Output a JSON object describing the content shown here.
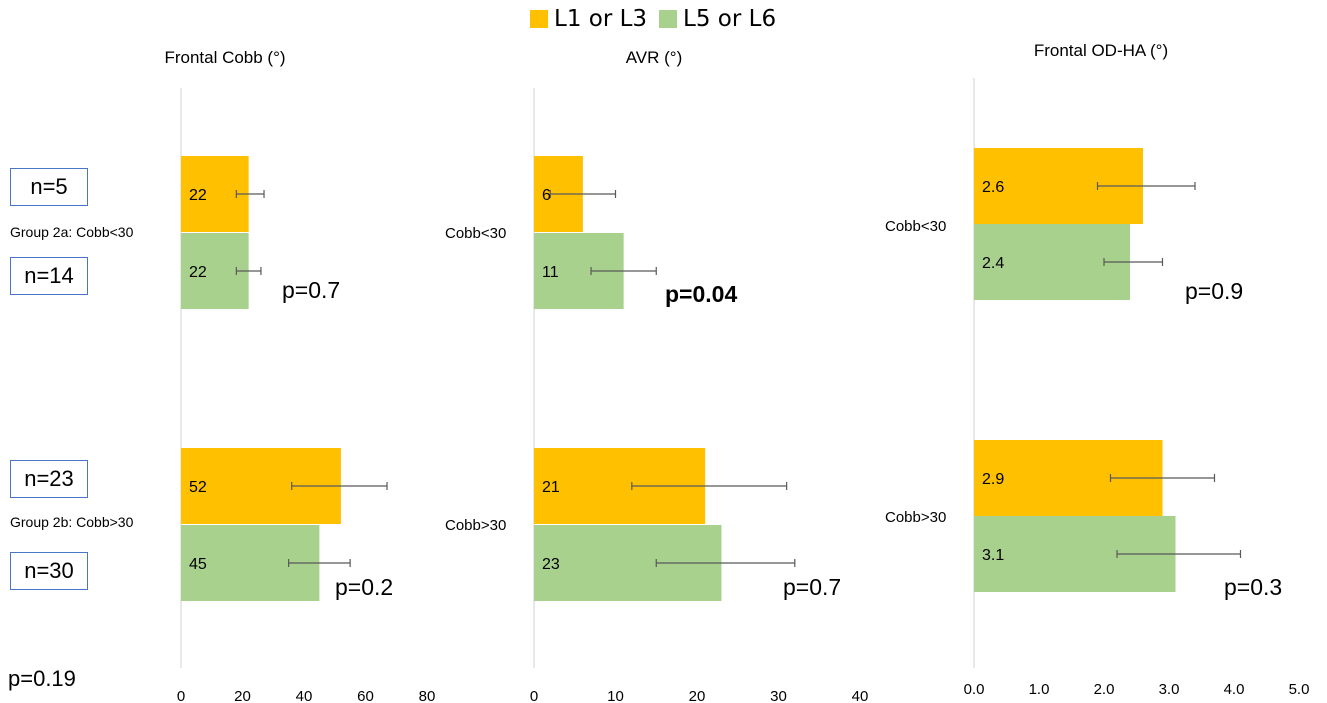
{
  "colors": {
    "L1_or_L3": "#ffc000",
    "L5_or_L6": "#a9d18e",
    "errorbar": "#595959",
    "axis": "#d9d9d9"
  },
  "legend": [
    {
      "name": "L1 or L3",
      "color": "#ffc000"
    },
    {
      "name": "L5 or L6",
      "color": "#a9d18e"
    }
  ],
  "groups": {
    "g2a_label": "Group 2a: Cobb<30",
    "g2b_label": "Group 2b: Cobb>30",
    "n_g2a_l13": "n=5",
    "n_g2a_l56": "n=14",
    "n_g2b_l13": "n=23",
    "n_g2b_l56": "n=30",
    "overall_p": "p=0.19"
  },
  "chart_data": [
    {
      "type": "bar",
      "orientation": "horizontal",
      "title": "Frontal Cobb (°)",
      "categories": [
        "Group 2a: Cobb<30",
        "Group 2b: Cobb>30"
      ],
      "series": [
        {
          "name": "L1 or L3",
          "values": [
            22,
            52
          ],
          "error_low": [
            18,
            36
          ],
          "error_high": [
            27,
            67
          ],
          "labels": [
            "22",
            "52"
          ]
        },
        {
          "name": "L5 or L6",
          "values": [
            22,
            45
          ],
          "error_low": [
            18,
            35
          ],
          "error_high": [
            26,
            55
          ],
          "labels": [
            "22",
            "45"
          ]
        }
      ],
      "p_values": [
        "p=0.7",
        "p=0.2"
      ],
      "p_bold": [
        false,
        false
      ],
      "xlim": [
        0,
        80
      ],
      "ticks": [
        "0",
        "20",
        "40",
        "60",
        "80"
      ]
    },
    {
      "type": "bar",
      "orientation": "horizontal",
      "title": "AVR (°)",
      "categories": [
        "Cobb<30",
        "Cobb>30"
      ],
      "series": [
        {
          "name": "L1 or L3",
          "values": [
            6,
            21
          ],
          "error_low": [
            2,
            12
          ],
          "error_high": [
            10,
            31
          ],
          "labels": [
            "6",
            "21"
          ]
        },
        {
          "name": "L5 or L6",
          "values": [
            11,
            23
          ],
          "error_low": [
            7,
            15
          ],
          "error_high": [
            15,
            32
          ],
          "labels": [
            "11",
            "23"
          ]
        }
      ],
      "p_values": [
        "p=0.04",
        "p=0.7"
      ],
      "p_bold": [
        true,
        false
      ],
      "xlim": [
        0,
        40
      ],
      "ticks": [
        "0",
        "10",
        "20",
        "30",
        "40"
      ]
    },
    {
      "type": "bar",
      "orientation": "horizontal",
      "title": "Frontal OD-HA (°)",
      "categories": [
        "Cobb<30",
        "Cobb>30"
      ],
      "series": [
        {
          "name": "L1 or L3",
          "values": [
            2.6,
            2.9
          ],
          "error_low": [
            1.9,
            2.1
          ],
          "error_high": [
            3.4,
            3.7
          ],
          "labels": [
            "2.6",
            "2.9"
          ]
        },
        {
          "name": "L5 or L6",
          "values": [
            2.4,
            3.1
          ],
          "error_low": [
            2.0,
            2.2
          ],
          "error_high": [
            2.9,
            4.1
          ],
          "labels": [
            "2.4",
            "3.1"
          ]
        }
      ],
      "p_values": [
        "p=0.9",
        "p=0.3"
      ],
      "p_bold": [
        false,
        false
      ],
      "xlim": [
        0,
        5
      ],
      "ticks": [
        "0.0",
        "1.0",
        "2.0",
        "3.0",
        "4.0",
        "5.0"
      ]
    }
  ]
}
